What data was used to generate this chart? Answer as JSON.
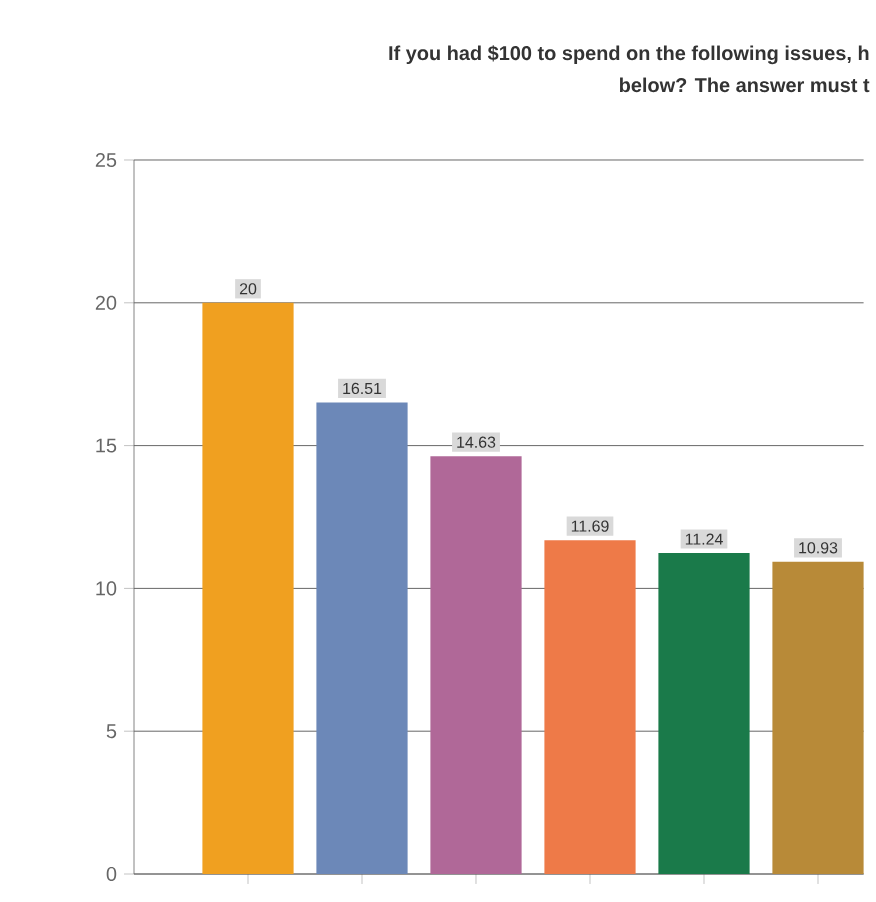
{
  "chart_data": {
    "type": "bar",
    "title": [
      "If you had $100 to spend on the following issues, h",
      "below? The answer must t"
    ],
    "categories": [
      null,
      null,
      null,
      null,
      null,
      null
    ],
    "values": [
      20,
      16.51,
      14.63,
      11.69,
      11.24,
      10.93
    ],
    "colors": [
      "#f0a020",
      "#6c88b8",
      "#b06898",
      "#ee7a48",
      "#1a7a4a",
      "#b88a38"
    ],
    "ylim": [
      0,
      25
    ],
    "yticks": [
      0,
      5,
      10,
      15,
      20,
      25
    ],
    "grid": "y",
    "data_labels": true
  }
}
